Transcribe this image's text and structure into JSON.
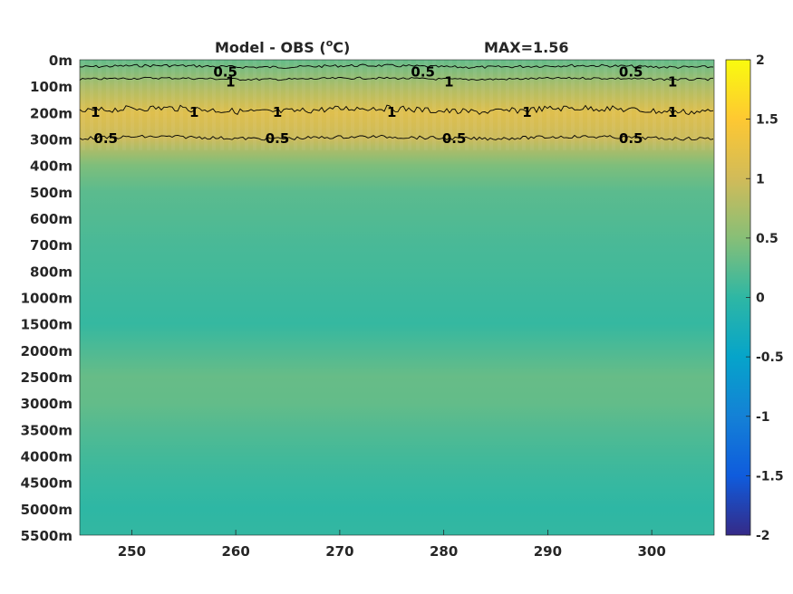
{
  "chart_data": {
    "type": "heatmap",
    "title": "Model - OBS (",
    "title_unit_sup": "o",
    "title_unit": "C)",
    "max_label": "MAX=1.56",
    "x_ticks": [
      250,
      260,
      270,
      280,
      290,
      300
    ],
    "x_range": [
      245,
      306
    ],
    "y_ticks": [
      "0m",
      "100m",
      "200m",
      "300m",
      "400m",
      "500m",
      "600m",
      "700m",
      "800m",
      "1000m",
      "1500m",
      "2000m",
      "2500m",
      "3000m",
      "3500m",
      "4000m",
      "4500m",
      "5000m",
      "5500m"
    ],
    "colorbar": {
      "range": [
        -2,
        2
      ],
      "ticks": [
        "2",
        "1.5",
        "1",
        "0.5",
        "0",
        "-0.5",
        "-1",
        "-1.5",
        "-2"
      ],
      "colormap": "parula"
    },
    "depth_profile": [
      0.3,
      0.75,
      1.15,
      0.95,
      0.45,
      0.25,
      0.2,
      0.15,
      0.12,
      0.08,
      0.04,
      0.18,
      0.32,
      0.3,
      0.2,
      0.12,
      0.05,
      0.0,
      0.03
    ],
    "contour_levels": [
      0.5,
      1
    ],
    "contour_labels": [
      {
        "text": "0.5",
        "x": 259,
        "depth": "0m-100m upper"
      },
      {
        "text": "1",
        "x": 259.5,
        "depth": "100m"
      },
      {
        "text": "0.5",
        "x": 278,
        "depth": "0m-100m upper"
      },
      {
        "text": "1",
        "x": 280.5,
        "depth": "100m"
      },
      {
        "text": "0.5",
        "x": 298,
        "depth": "0m-100m upper"
      },
      {
        "text": "1",
        "x": 302,
        "depth": "100m"
      },
      {
        "text": "1",
        "x": 246.5,
        "depth": "200m"
      },
      {
        "text": "1",
        "x": 256,
        "depth": "200m"
      },
      {
        "text": "1",
        "x": 264,
        "depth": "200m"
      },
      {
        "text": "1",
        "x": 275,
        "depth": "200m"
      },
      {
        "text": "1",
        "x": 288,
        "depth": "200m"
      },
      {
        "text": "1",
        "x": 302,
        "depth": "200m"
      },
      {
        "text": "0.5",
        "x": 247.5,
        "depth": "300m"
      },
      {
        "text": "0.5",
        "x": 264,
        "depth": "300m"
      },
      {
        "text": "0.5",
        "x": 281,
        "depth": "300m"
      },
      {
        "text": "0.5",
        "x": 298,
        "depth": "300m"
      }
    ]
  }
}
